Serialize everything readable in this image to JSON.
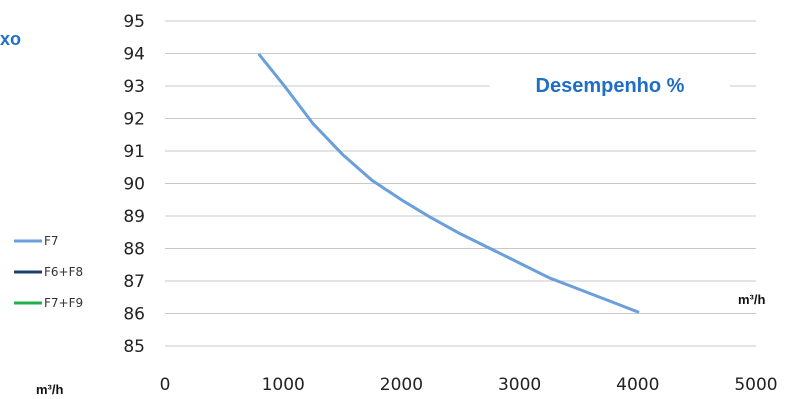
{
  "header": {
    "fragment": "xo"
  },
  "chart_data": {
    "type": "line",
    "title": "Desempenho %",
    "unit_right": "m³/h",
    "unit_left": "m³/h",
    "x_ticks": [
      "0",
      "1000",
      "2000",
      "3000",
      "4000",
      "5000"
    ],
    "y_ticks": [
      "85",
      "86",
      "87",
      "88",
      "89",
      "90",
      "91",
      "92",
      "93",
      "94",
      "95"
    ],
    "xlim": [
      0,
      5000
    ],
    "ylim": [
      85,
      95
    ],
    "grid": "horizontal",
    "legend_position": "left",
    "legend": [
      {
        "label": "F7",
        "color": "#6a9fd9"
      },
      {
        "label": "F6+F8",
        "color": "#1f3f73"
      },
      {
        "label": "F7+F9",
        "color": "#22b14c"
      }
    ],
    "series": [
      {
        "name": "F7",
        "color": "#6a9fd9",
        "x": [
          800,
          1000,
          1250,
          1500,
          1750,
          2000,
          2250,
          2500,
          2750,
          3000,
          3250,
          3500,
          3750,
          4000
        ],
        "y": [
          93.95,
          93.05,
          91.85,
          90.9,
          90.1,
          89.5,
          88.95,
          88.45,
          88.0,
          87.55,
          87.1,
          86.75,
          86.4,
          86.05
        ]
      }
    ]
  }
}
